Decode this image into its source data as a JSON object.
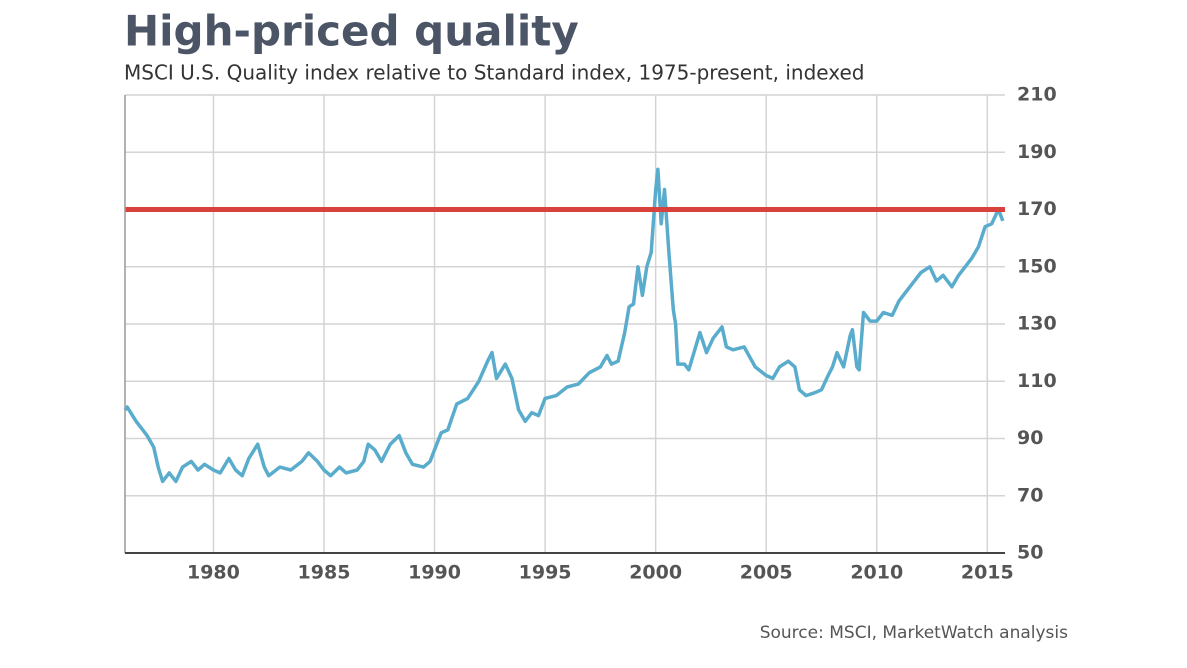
{
  "chart_data": {
    "type": "line",
    "title": "High-priced quality",
    "subtitle": "MSCI U.S. Quality index relative to Standard index, 1975-present, indexed",
    "source": "Source: MSCI, MarketWatch analysis",
    "xlim": [
      1976,
      2015.8
    ],
    "xticks": [
      1980,
      1985,
      1990,
      1995,
      2000,
      2005,
      2010,
      2015
    ],
    "ylim": [
      50,
      210
    ],
    "yticks": [
      50,
      70,
      90,
      110,
      130,
      150,
      170,
      190,
      210
    ],
    "grid": true,
    "reference_line": {
      "value": 170,
      "color": "#d9413d"
    },
    "series": [
      {
        "color": "#5aaccd",
        "x": [
          1976.0,
          1976.1,
          1976.5,
          1977,
          1977.3,
          1977.5,
          1977.7,
          1978,
          1978.3,
          1978.6,
          1979,
          1979.3,
          1979.6,
          1980,
          1980.3,
          1980.7,
          1981,
          1981.3,
          1981.6,
          1982,
          1982.3,
          1982.5,
          1983,
          1983.5,
          1984,
          1984.3,
          1984.7,
          1985,
          1985.3,
          1985.7,
          1986,
          1986.5,
          1986.8,
          1987,
          1987.3,
          1987.6,
          1988,
          1988.4,
          1988.7,
          1989,
          1989.5,
          1989.8,
          1990,
          1990.3,
          1990.6,
          1991,
          1991.5,
          1992,
          1992.4,
          1992.6,
          1992.8,
          1993.2,
          1993.5,
          1993.8,
          1994.1,
          1994.4,
          1994.7,
          1995,
          1995.5,
          1996,
          1996.5,
          1997,
          1997.5,
          1997.8,
          1998,
          1998.3,
          1998.6,
          1998.8,
          1999,
          1999.2,
          1999.4,
          1999.6,
          1999.8,
          2000,
          2000.1,
          2000.25,
          2000.4,
          2000.6,
          2000.8,
          2000.9,
          2001,
          2001.3,
          2001.5,
          2002,
          2002.3,
          2002.6,
          2003,
          2003.2,
          2003.5,
          2004,
          2004.5,
          2005,
          2005.3,
          2005.6,
          2006,
          2006.3,
          2006.5,
          2006.8,
          2007.2,
          2007.5,
          2007.8,
          2008,
          2008.2,
          2008.5,
          2008.8,
          2008.9,
          2009.1,
          2009.2,
          2009.4,
          2009.7,
          2010,
          2010.3,
          2010.7,
          2011,
          2011.3,
          2011.6,
          2012,
          2012.4,
          2012.7,
          2013,
          2013.4,
          2013.7,
          2014,
          2014.3,
          2014.6,
          2014.9,
          2015.2,
          2015.5,
          2015.7
        ],
        "values": [
          100,
          101,
          96,
          91,
          87,
          80,
          75,
          78,
          75,
          80,
          82,
          79,
          81,
          79,
          78,
          83,
          79,
          77,
          83,
          88,
          80,
          77,
          80,
          79,
          82,
          85,
          82,
          79,
          77,
          80,
          78,
          79,
          82,
          88,
          86,
          82,
          88,
          91,
          85,
          81,
          80,
          82,
          86,
          92,
          93,
          102,
          104,
          110,
          117,
          120,
          111,
          116,
          111,
          100,
          96,
          99,
          98,
          104,
          105,
          108,
          109,
          113,
          115,
          119,
          116,
          117,
          127,
          136,
          137,
          150,
          140,
          150,
          155,
          177,
          184,
          165,
          177,
          155,
          135,
          130,
          116,
          116,
          114,
          127,
          120,
          125,
          129,
          122,
          121,
          122,
          115,
          112,
          111,
          115,
          117,
          115,
          107,
          105,
          106,
          107,
          112,
          115,
          120,
          115,
          126,
          128,
          115,
          114,
          134,
          131,
          131,
          134,
          133,
          138,
          141,
          144,
          148,
          150,
          145,
          147,
          143,
          147,
          150,
          153,
          157,
          164,
          165,
          170,
          166
        ]
      }
    ]
  }
}
